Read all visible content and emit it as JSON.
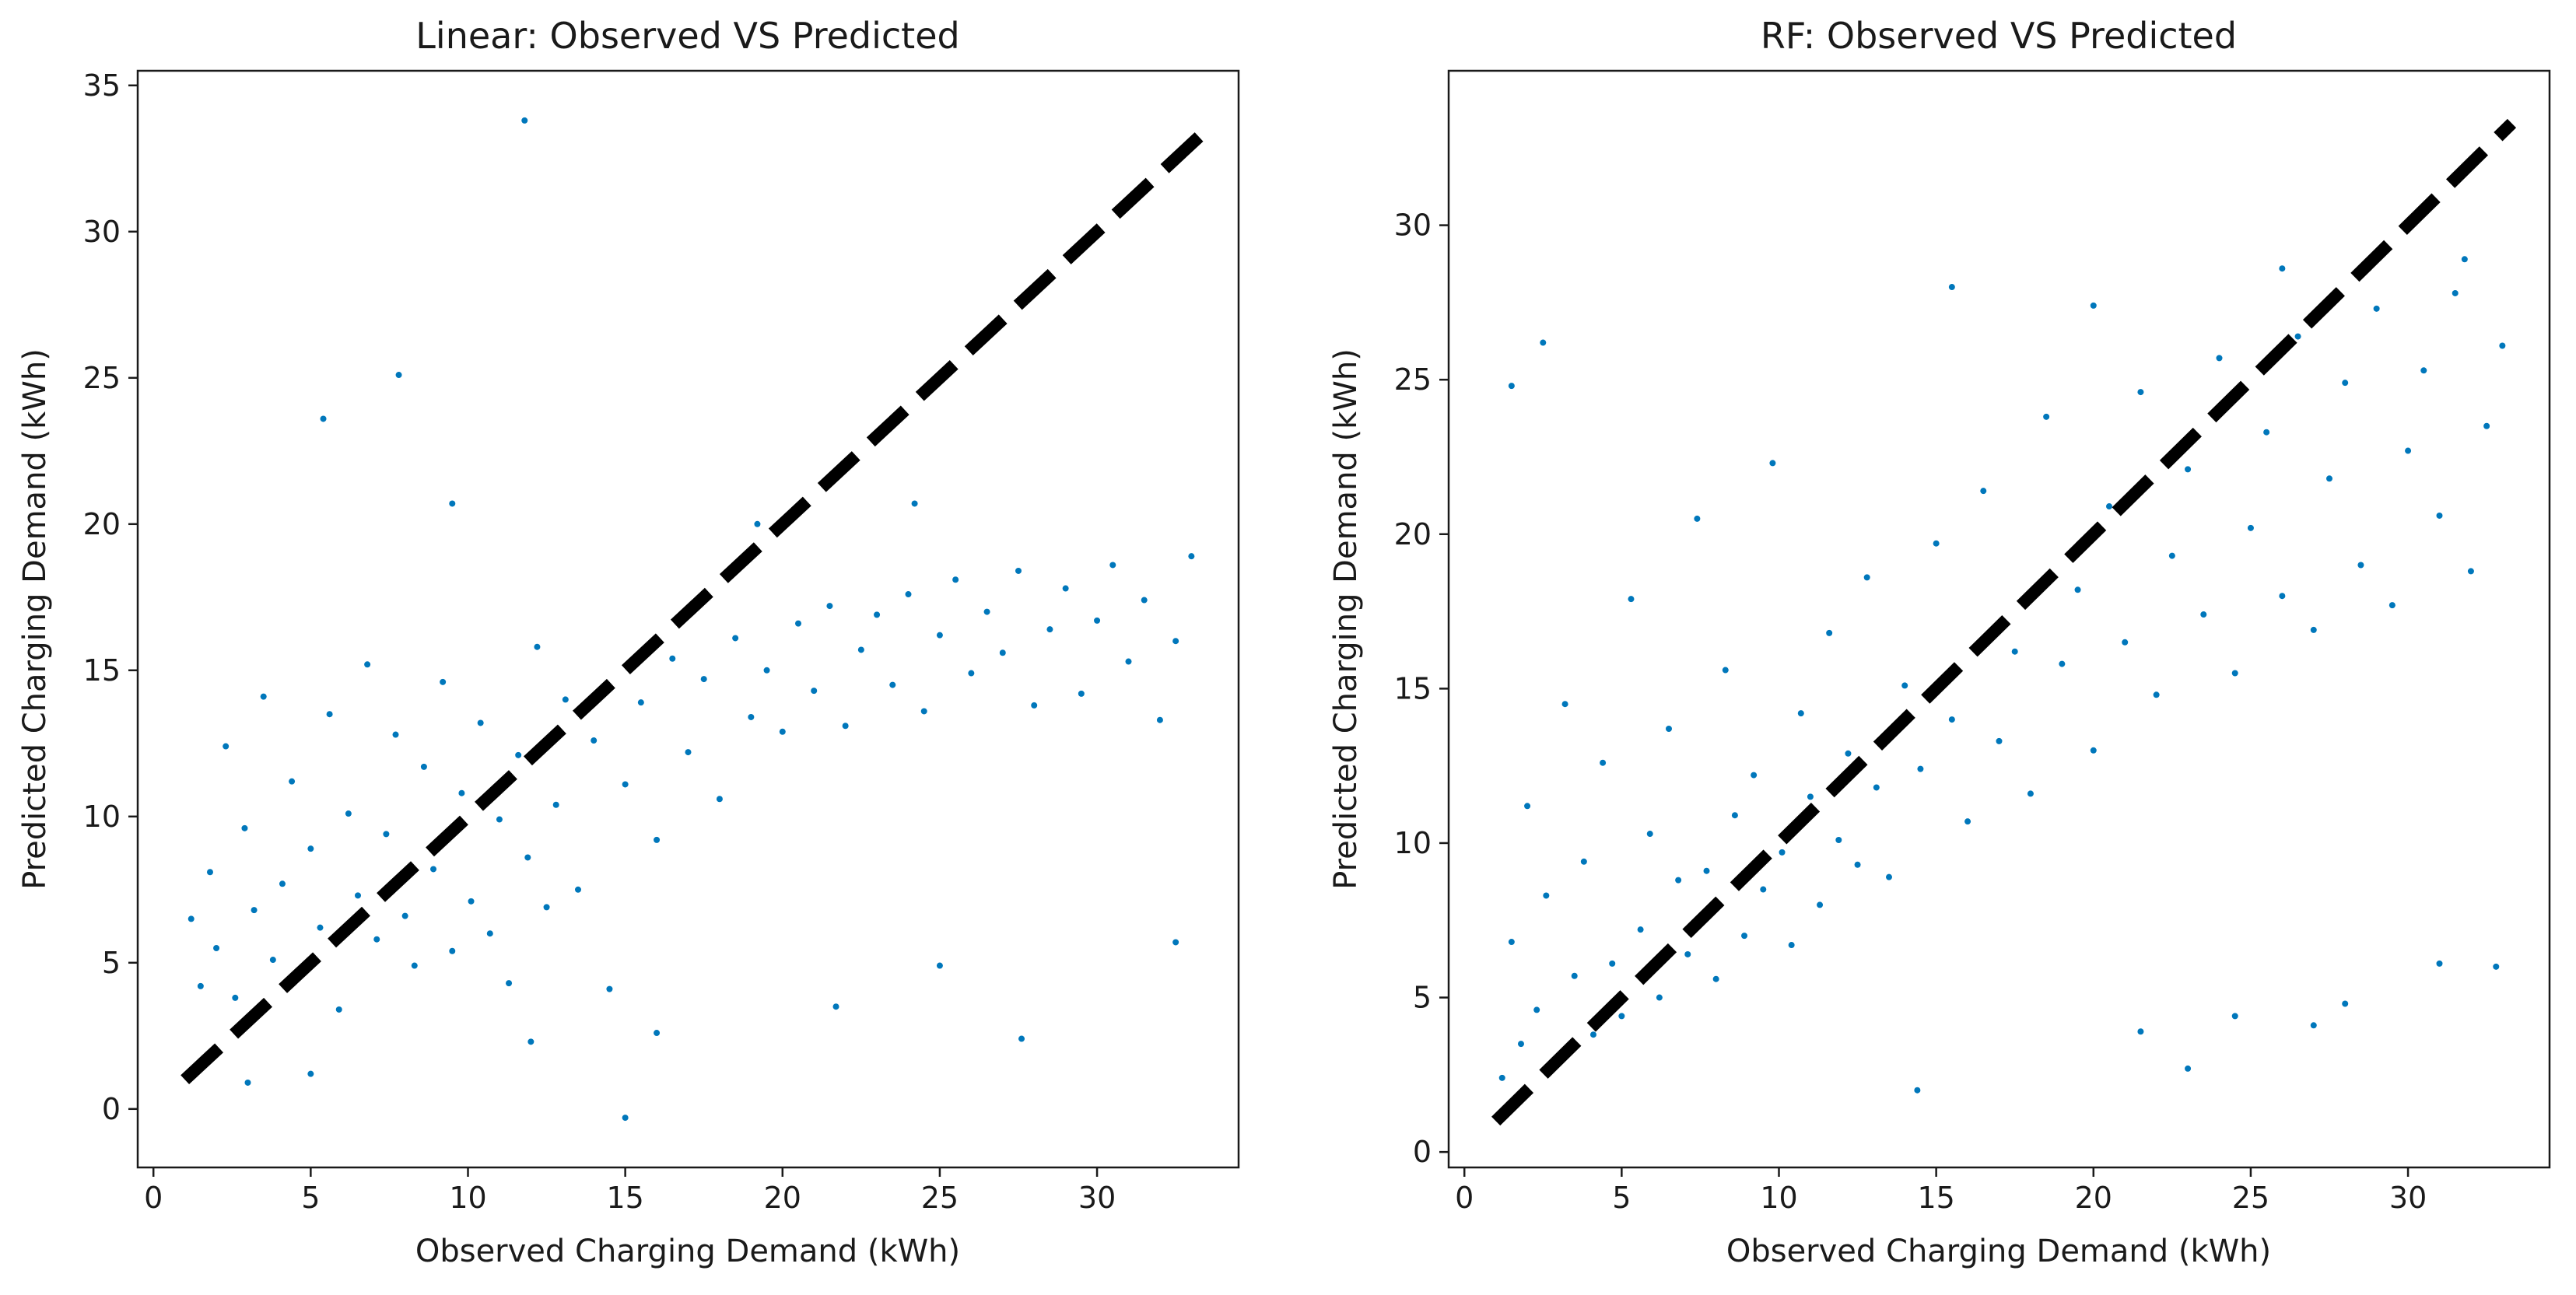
{
  "chart_data": [
    {
      "type": "scatter",
      "title": "Linear: Observed VS Predicted",
      "xlabel": "Observed Charging Demand (kWh)",
      "ylabel": "Predicted Charging Demand (kWh)",
      "xlim": [
        -0.5,
        34.5
      ],
      "ylim": [
        -2,
        35.5
      ],
      "xticks": [
        0,
        5,
        10,
        15,
        20,
        25,
        30
      ],
      "yticks": [
        0,
        5,
        10,
        15,
        20,
        25,
        30,
        35
      ],
      "grid": false,
      "point_color": "#0077bb",
      "reference_line": {
        "x": [
          1,
          33.3
        ],
        "y": [
          1,
          33.3
        ],
        "style": "dashed",
        "color": "#000000"
      },
      "points": [
        [
          1.2,
          6.5
        ],
        [
          1.5,
          4.2
        ],
        [
          1.8,
          8.1
        ],
        [
          2.0,
          5.5
        ],
        [
          2.3,
          12.4
        ],
        [
          2.6,
          3.8
        ],
        [
          2.9,
          9.6
        ],
        [
          3.2,
          6.8
        ],
        [
          3.5,
          14.1
        ],
        [
          3.8,
          5.1
        ],
        [
          4.1,
          7.7
        ],
        [
          4.4,
          11.2
        ],
        [
          4.7,
          4.6
        ],
        [
          5.0,
          8.9
        ],
        [
          5.3,
          6.2
        ],
        [
          5.6,
          13.5
        ],
        [
          5.9,
          3.4
        ],
        [
          6.2,
          10.1
        ],
        [
          6.5,
          7.3
        ],
        [
          6.8,
          15.2
        ],
        [
          7.1,
          5.8
        ],
        [
          7.4,
          9.4
        ],
        [
          7.7,
          12.8
        ],
        [
          8.0,
          6.6
        ],
        [
          8.3,
          4.9
        ],
        [
          8.6,
          11.7
        ],
        [
          8.9,
          8.2
        ],
        [
          9.2,
          14.6
        ],
        [
          9.5,
          5.4
        ],
        [
          9.8,
          10.8
        ],
        [
          10.1,
          7.1
        ],
        [
          10.4,
          13.2
        ],
        [
          10.7,
          6.0
        ],
        [
          11.0,
          9.9
        ],
        [
          11.3,
          4.3
        ],
        [
          11.6,
          12.1
        ],
        [
          11.9,
          8.6
        ],
        [
          12.2,
          15.8
        ],
        [
          12.5,
          6.9
        ],
        [
          12.8,
          10.4
        ],
        [
          13.1,
          14.0
        ],
        [
          13.5,
          7.5
        ],
        [
          14.0,
          12.6
        ],
        [
          14.5,
          4.1
        ],
        [
          15.0,
          11.1
        ],
        [
          15.5,
          13.9
        ],
        [
          16.0,
          9.2
        ],
        [
          16.5,
          15.4
        ],
        [
          17.0,
          12.2
        ],
        [
          17.5,
          14.7
        ],
        [
          18.0,
          10.6
        ],
        [
          18.5,
          16.1
        ],
        [
          19.0,
          13.4
        ],
        [
          19.5,
          15.0
        ],
        [
          20.0,
          12.9
        ],
        [
          20.5,
          16.6
        ],
        [
          21.0,
          14.3
        ],
        [
          21.5,
          17.2
        ],
        [
          22.0,
          13.1
        ],
        [
          22.5,
          15.7
        ],
        [
          23.0,
          16.9
        ],
        [
          23.5,
          14.5
        ],
        [
          24.0,
          17.6
        ],
        [
          24.5,
          13.6
        ],
        [
          25.0,
          16.2
        ],
        [
          25.5,
          18.1
        ],
        [
          26.0,
          14.9
        ],
        [
          26.5,
          17.0
        ],
        [
          27.0,
          15.6
        ],
        [
          27.5,
          18.4
        ],
        [
          28.0,
          13.8
        ],
        [
          28.5,
          16.4
        ],
        [
          29.0,
          17.8
        ],
        [
          29.5,
          14.2
        ],
        [
          30.0,
          16.7
        ],
        [
          30.5,
          18.6
        ],
        [
          31.0,
          15.3
        ],
        [
          31.5,
          17.4
        ],
        [
          32.0,
          13.3
        ],
        [
          32.5,
          16.0
        ],
        [
          33.0,
          18.9
        ],
        [
          5.4,
          23.6
        ],
        [
          7.8,
          25.1
        ],
        [
          11.8,
          33.8
        ],
        [
          9.5,
          20.7
        ],
        [
          15.0,
          -0.3
        ],
        [
          27.6,
          2.4
        ],
        [
          21.7,
          3.5
        ],
        [
          24.2,
          20.7
        ],
        [
          19.2,
          20.0
        ],
        [
          3.0,
          0.9
        ],
        [
          5.0,
          1.2
        ],
        [
          12.0,
          2.3
        ],
        [
          16.0,
          2.6
        ],
        [
          25.0,
          4.9
        ],
        [
          32.5,
          5.7
        ]
      ]
    },
    {
      "type": "scatter",
      "title": "RF: Observed VS Predicted",
      "xlabel": "Observed Charging Demand (kWh)",
      "ylabel": "Predicted Charging Demand (kWh)",
      "xlim": [
        -0.5,
        34.5
      ],
      "ylim": [
        -0.5,
        35.0
      ],
      "xticks": [
        0,
        5,
        10,
        15,
        20,
        25,
        30
      ],
      "yticks": [
        0,
        5,
        10,
        15,
        20,
        25,
        30
      ],
      "grid": false,
      "point_color": "#0077bb",
      "reference_line": {
        "x": [
          1,
          33.3
        ],
        "y": [
          1,
          33.3
        ],
        "style": "dashed",
        "color": "#000000"
      },
      "points": [
        [
          1.2,
          2.4
        ],
        [
          1.5,
          6.8
        ],
        [
          1.8,
          3.5
        ],
        [
          2.0,
          11.2
        ],
        [
          2.3,
          4.6
        ],
        [
          2.6,
          8.3
        ],
        [
          2.9,
          2.9
        ],
        [
          3.2,
          14.5
        ],
        [
          3.5,
          5.7
        ],
        [
          3.8,
          9.4
        ],
        [
          4.1,
          3.8
        ],
        [
          4.4,
          12.6
        ],
        [
          4.7,
          6.1
        ],
        [
          5.0,
          4.4
        ],
        [
          5.3,
          17.9
        ],
        [
          5.6,
          7.2
        ],
        [
          5.9,
          10.3
        ],
        [
          6.2,
          5.0
        ],
        [
          6.5,
          13.7
        ],
        [
          6.8,
          8.8
        ],
        [
          7.1,
          6.4
        ],
        [
          7.4,
          20.5
        ],
        [
          7.7,
          9.1
        ],
        [
          8.0,
          5.6
        ],
        [
          8.3,
          15.6
        ],
        [
          8.6,
          10.9
        ],
        [
          8.9,
          7.0
        ],
        [
          9.2,
          12.2
        ],
        [
          9.5,
          8.5
        ],
        [
          9.8,
          22.3
        ],
        [
          10.1,
          9.7
        ],
        [
          10.4,
          6.7
        ],
        [
          10.7,
          14.2
        ],
        [
          11.0,
          11.5
        ],
        [
          11.3,
          8.0
        ],
        [
          11.6,
          16.8
        ],
        [
          11.9,
          10.1
        ],
        [
          12.2,
          12.9
        ],
        [
          12.5,
          9.3
        ],
        [
          12.8,
          18.6
        ],
        [
          13.1,
          11.8
        ],
        [
          13.5,
          8.9
        ],
        [
          14.0,
          15.1
        ],
        [
          14.5,
          12.4
        ],
        [
          15.0,
          19.7
        ],
        [
          15.5,
          14.0
        ],
        [
          16.0,
          10.7
        ],
        [
          16.5,
          21.4
        ],
        [
          17.0,
          13.3
        ],
        [
          17.5,
          16.2
        ],
        [
          18.0,
          11.6
        ],
        [
          18.5,
          23.8
        ],
        [
          19.0,
          15.8
        ],
        [
          19.5,
          18.2
        ],
        [
          20.0,
          13.0
        ],
        [
          20.5,
          20.9
        ],
        [
          21.0,
          16.5
        ],
        [
          21.5,
          24.6
        ],
        [
          22.0,
          14.8
        ],
        [
          22.5,
          19.3
        ],
        [
          23.0,
          22.1
        ],
        [
          23.5,
          17.4
        ],
        [
          24.0,
          25.7
        ],
        [
          24.5,
          15.5
        ],
        [
          25.0,
          20.2
        ],
        [
          25.5,
          23.3
        ],
        [
          26.0,
          18.0
        ],
        [
          26.5,
          26.4
        ],
        [
          27.0,
          16.9
        ],
        [
          27.5,
          21.8
        ],
        [
          28.0,
          24.9
        ],
        [
          28.5,
          19.0
        ],
        [
          29.0,
          27.3
        ],
        [
          29.5,
          17.7
        ],
        [
          30.0,
          22.7
        ],
        [
          30.5,
          25.3
        ],
        [
          31.0,
          20.6
        ],
        [
          31.5,
          27.8
        ],
        [
          32.0,
          18.8
        ],
        [
          32.5,
          23.5
        ],
        [
          33.0,
          26.1
        ],
        [
          1.5,
          24.8
        ],
        [
          2.5,
          26.2
        ],
        [
          15.5,
          28.0
        ],
        [
          20.0,
          27.4
        ],
        [
          24.5,
          4.4
        ],
        [
          27.0,
          4.1
        ],
        [
          28.0,
          4.8
        ],
        [
          31.0,
          6.1
        ],
        [
          32.8,
          6.0
        ],
        [
          14.4,
          2.0
        ],
        [
          23.0,
          2.7
        ],
        [
          21.5,
          3.9
        ],
        [
          26.0,
          28.6
        ],
        [
          31.8,
          28.9
        ]
      ]
    }
  ]
}
